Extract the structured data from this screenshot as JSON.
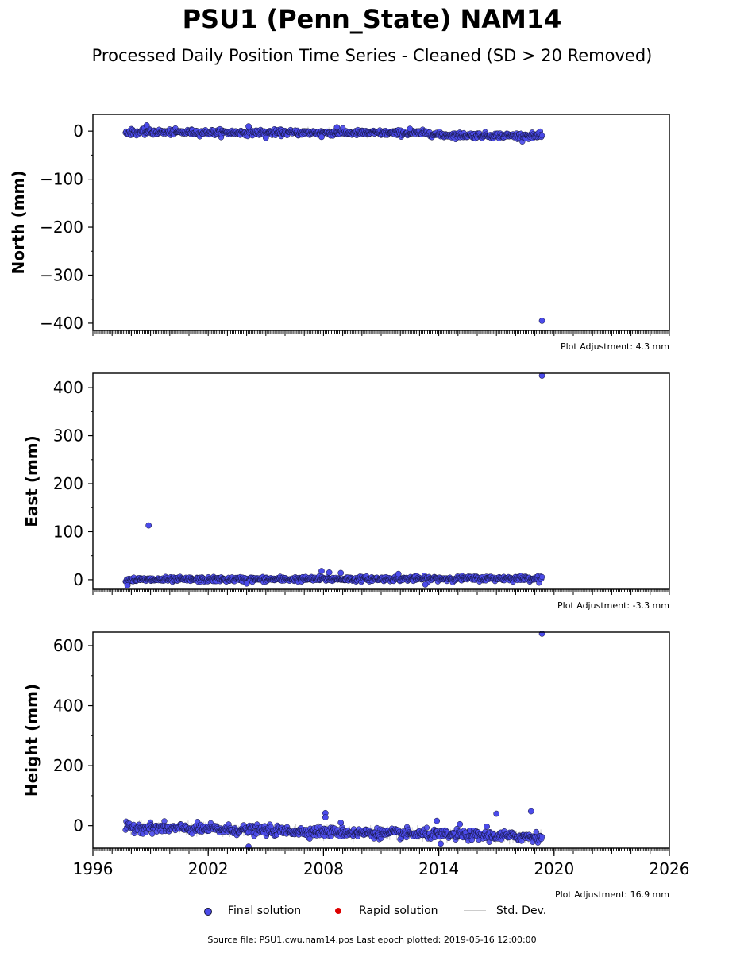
{
  "title": "PSU1 (Penn_State) NAM14",
  "subtitle": "Processed Daily Position Time Series - Cleaned (SD > 20 Removed)",
  "footer": "Source file: PSU1.cwu.nam14.pos  Last epoch plotted: 2019-05-16 12:00:00",
  "legend": {
    "final": "Final solution",
    "rapid": "Rapid solution",
    "std": "Std. Dev."
  },
  "colors": {
    "final": "#4b4bea",
    "final_edge": "#111133",
    "rapid": "#dd0000",
    "std": "#cccccc"
  },
  "chart_data": {
    "type": "scatter",
    "xlim": [
      1996,
      2026
    ],
    "x_ticks": [
      1996,
      2002,
      2008,
      2014,
      2020,
      2026
    ],
    "x_tick_labels": [
      "1996",
      "2002",
      "2008",
      "2014",
      "2020",
      "2026"
    ],
    "data_range": [
      1997.7,
      2019.37
    ],
    "panels": [
      {
        "ylabel": "North (mm)",
        "ylim": [
          -415,
          35
        ],
        "y_ticks": [
          0,
          -100,
          -200,
          -300,
          -400
        ],
        "y_tick_labels": [
          "0",
          "−100",
          "−200",
          "−300",
          "−400"
        ],
        "adjustment": "Plot Adjustment: 4.3 mm",
        "trend": [
          [
            1997.7,
            -2
          ],
          [
            2013.5,
            -4
          ],
          [
            2014,
            -8
          ],
          [
            2019.37,
            -10
          ]
        ],
        "scatter_sd": 3,
        "outliers": [
          [
            1998.8,
            12
          ],
          [
            2004.1,
            10
          ],
          [
            2005.0,
            -14
          ],
          [
            2007.9,
            -12
          ],
          [
            2008.7,
            8
          ],
          [
            2012.5,
            5
          ],
          [
            2019.37,
            -395
          ]
        ]
      },
      {
        "ylabel": "East (mm)",
        "ylim": [
          -20,
          430
        ],
        "y_ticks": [
          0,
          100,
          200,
          300,
          400
        ],
        "y_tick_labels": [
          "0",
          "100",
          "200",
          "300",
          "400"
        ],
        "adjustment": "Plot Adjustment: -3.3 mm",
        "trend": [
          [
            1997.7,
            0
          ],
          [
            2019.37,
            3
          ]
        ],
        "scatter_sd": 2.5,
        "outliers": [
          [
            1997.8,
            -12
          ],
          [
            1998.9,
            113
          ],
          [
            2004.0,
            -8
          ],
          [
            2007.9,
            18
          ],
          [
            2008.3,
            15
          ],
          [
            2008.9,
            14
          ],
          [
            2011.9,
            12
          ],
          [
            2013.3,
            -10
          ],
          [
            2019.37,
            425
          ]
        ]
      },
      {
        "ylabel": "Height (mm)",
        "ylim": [
          -75,
          645
        ],
        "y_ticks": [
          0,
          200,
          400,
          600
        ],
        "y_tick_labels": [
          "0",
          "200",
          "400",
          "600"
        ],
        "adjustment": "Plot Adjustment: 16.9 mm",
        "trend": [
          [
            1997.7,
            -5
          ],
          [
            2019.37,
            -38
          ]
        ],
        "scatter_sd": 8,
        "outliers": [
          [
            2008.1,
            42
          ],
          [
            2008.1,
            28
          ],
          [
            2008.9,
            10
          ],
          [
            2013.9,
            16
          ],
          [
            2014.1,
            -60
          ],
          [
            2015.1,
            5
          ],
          [
            2016.5,
            -3
          ],
          [
            2017.0,
            40
          ],
          [
            2018.8,
            48
          ],
          [
            2019.37,
            640
          ],
          [
            2004.1,
            -70
          ]
        ]
      }
    ]
  }
}
